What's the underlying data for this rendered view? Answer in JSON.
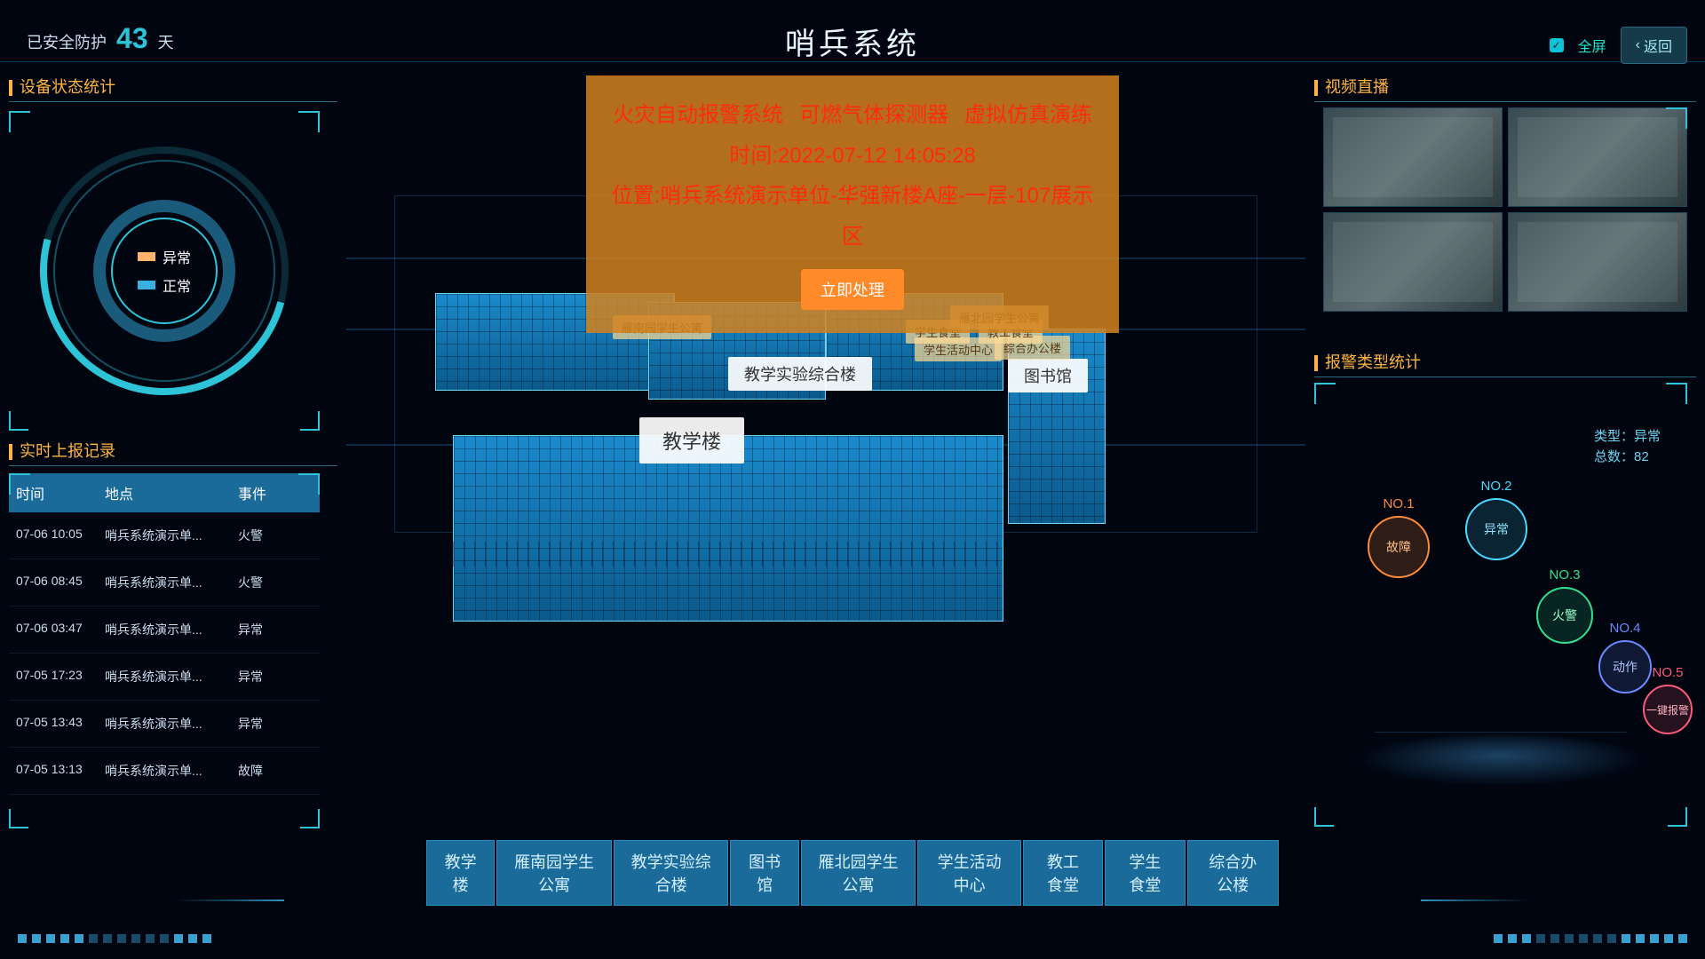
{
  "colors": {
    "accent": "#2ec4d8",
    "panel_title": "#ffb340",
    "alert_bg": "rgba(210,130,30,0.85)",
    "alert_text": "#ff2a12",
    "nav_bg": "#1a6a9a",
    "building_blue": "#1a8acc",
    "building_red": "#c23a2a",
    "background": "#000510"
  },
  "header": {
    "safe_prefix": "已安全防护",
    "safe_days": "43",
    "safe_suffix": "天",
    "title": "哨兵系统",
    "fullscreen_label": "全屏",
    "fullscreen_checked": true,
    "back_label": "返回"
  },
  "device_status": {
    "title": "设备状态统计",
    "legend_abnormal": "异常",
    "legend_normal": "正常"
  },
  "report_log": {
    "title": "实时上报记录",
    "columns": [
      "时间",
      "地点",
      "事件"
    ],
    "rows": [
      [
        "07-06 10:05",
        "哨兵系统演示单...",
        "火警"
      ],
      [
        "07-06 08:45",
        "哨兵系统演示单...",
        "火警"
      ],
      [
        "07-06 03:47",
        "哨兵系统演示单...",
        "异常"
      ],
      [
        "07-05 17:23",
        "哨兵系统演示单...",
        "异常"
      ],
      [
        "07-05 13:43",
        "哨兵系统演示单...",
        "异常"
      ],
      [
        "07-05 13:13",
        "哨兵系统演示单...",
        "故障"
      ]
    ]
  },
  "video": {
    "title": "视频直播"
  },
  "alarm_types": {
    "title": "报警类型统计",
    "info_type_label": "类型：",
    "info_type_value": "异常",
    "info_total_label": "总数：",
    "info_total_value": "82",
    "bubbles": [
      {
        "rank": "NO.1",
        "label": "故障"
      },
      {
        "rank": "NO.2",
        "label": "异常"
      },
      {
        "rank": "NO.3",
        "label": "火警"
      },
      {
        "rank": "NO.4",
        "label": "动作"
      },
      {
        "rank": "NO.5",
        "label": "一键报警"
      }
    ]
  },
  "alert": {
    "systems": [
      "火灾自动报警系统",
      "可燃气体探测器",
      "虚拟仿真演练"
    ],
    "time_label": "时间:",
    "time_value": "2022-07-12 14:05:28",
    "location_label": "位置:",
    "location_value": "哨兵系统演示单位-华强新楼A座-一层-107展示区",
    "process_button": "立即处理"
  },
  "scene_labels": {
    "main_building": "教学楼",
    "lab_building": "教学实验综合楼",
    "library": "图书馆",
    "office": "综合办公楼",
    "activity": "学生活动中心",
    "canteen_student": "学生食堂",
    "canteen_staff": "教工食堂",
    "dorm_south": "雁南园学生公寓",
    "dorm_north": "雁北园学生公寓"
  },
  "building_nav": [
    "教学楼",
    "雁南园学生公寓",
    "教学实验综合楼",
    "图书馆",
    "雁北园学生公寓",
    "学生活动中心",
    "教工食堂",
    "学生食堂",
    "综合办公楼"
  ]
}
